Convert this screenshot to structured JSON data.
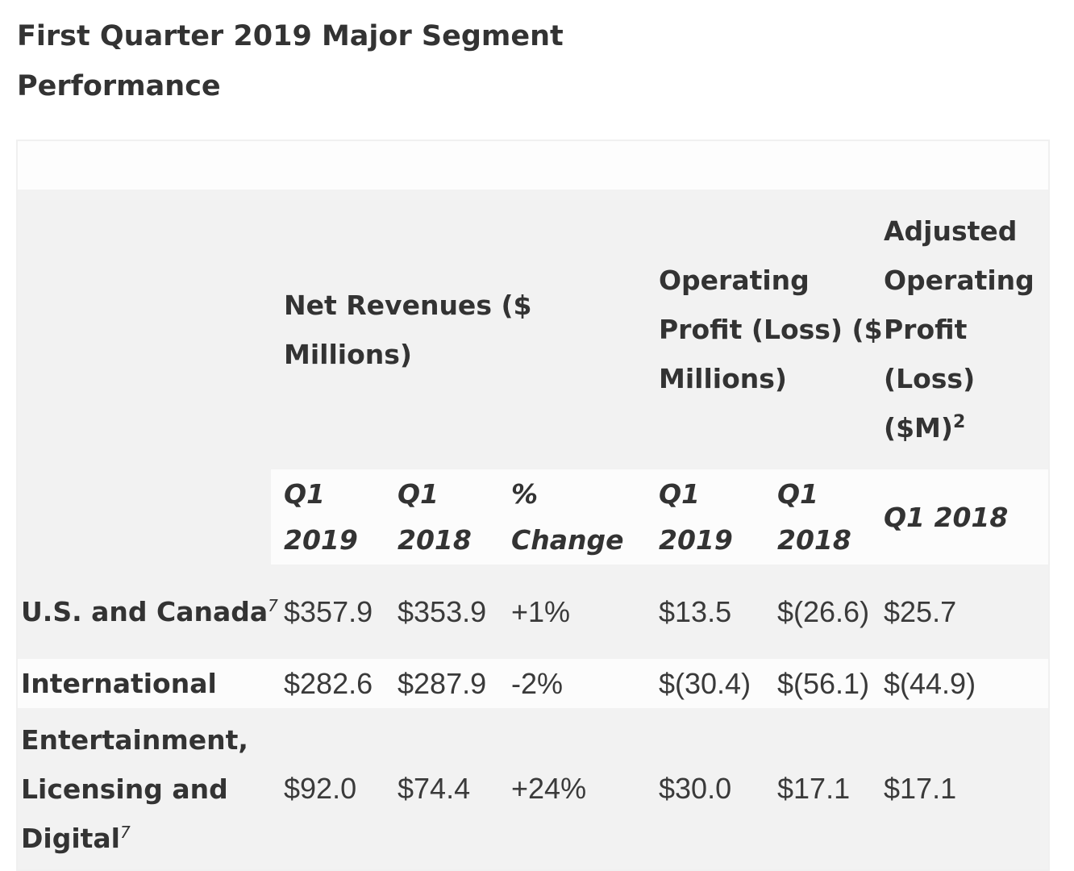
{
  "title": "First Quarter 2019 Major Segment Performance",
  "table": {
    "group_headers": {
      "net_revenues": "Net Revenues ($ Millions)",
      "operating_profit": "Operating Profit (Loss) ($ Millions)",
      "adjusted": "Adjusted Operating Profit (Loss) ($M)",
      "adjusted_footnote": "2"
    },
    "sub_headers": [
      "Q1 2019",
      "Q1 2018",
      "% Change",
      "Q1 2019",
      "Q1 2018",
      "Q1 2018"
    ],
    "rows": [
      {
        "segment": "U.S. and Canada",
        "footnote": "7",
        "values": [
          "$357.9",
          "$353.9",
          "+1%",
          "$13.5",
          "$(26.6)",
          "$25.7"
        ]
      },
      {
        "segment": "International",
        "footnote": "",
        "values": [
          "$282.6",
          "$287.9",
          "-2%",
          "$(30.4)",
          "$(56.1)",
          "$(44.9)"
        ]
      },
      {
        "segment": "Entertainment, Licensing and Digital",
        "footnote": "7",
        "values": [
          "$92.0",
          "$74.4",
          "+24%",
          "$30.0",
          "$17.1",
          "$17.1"
        ]
      }
    ]
  }
}
